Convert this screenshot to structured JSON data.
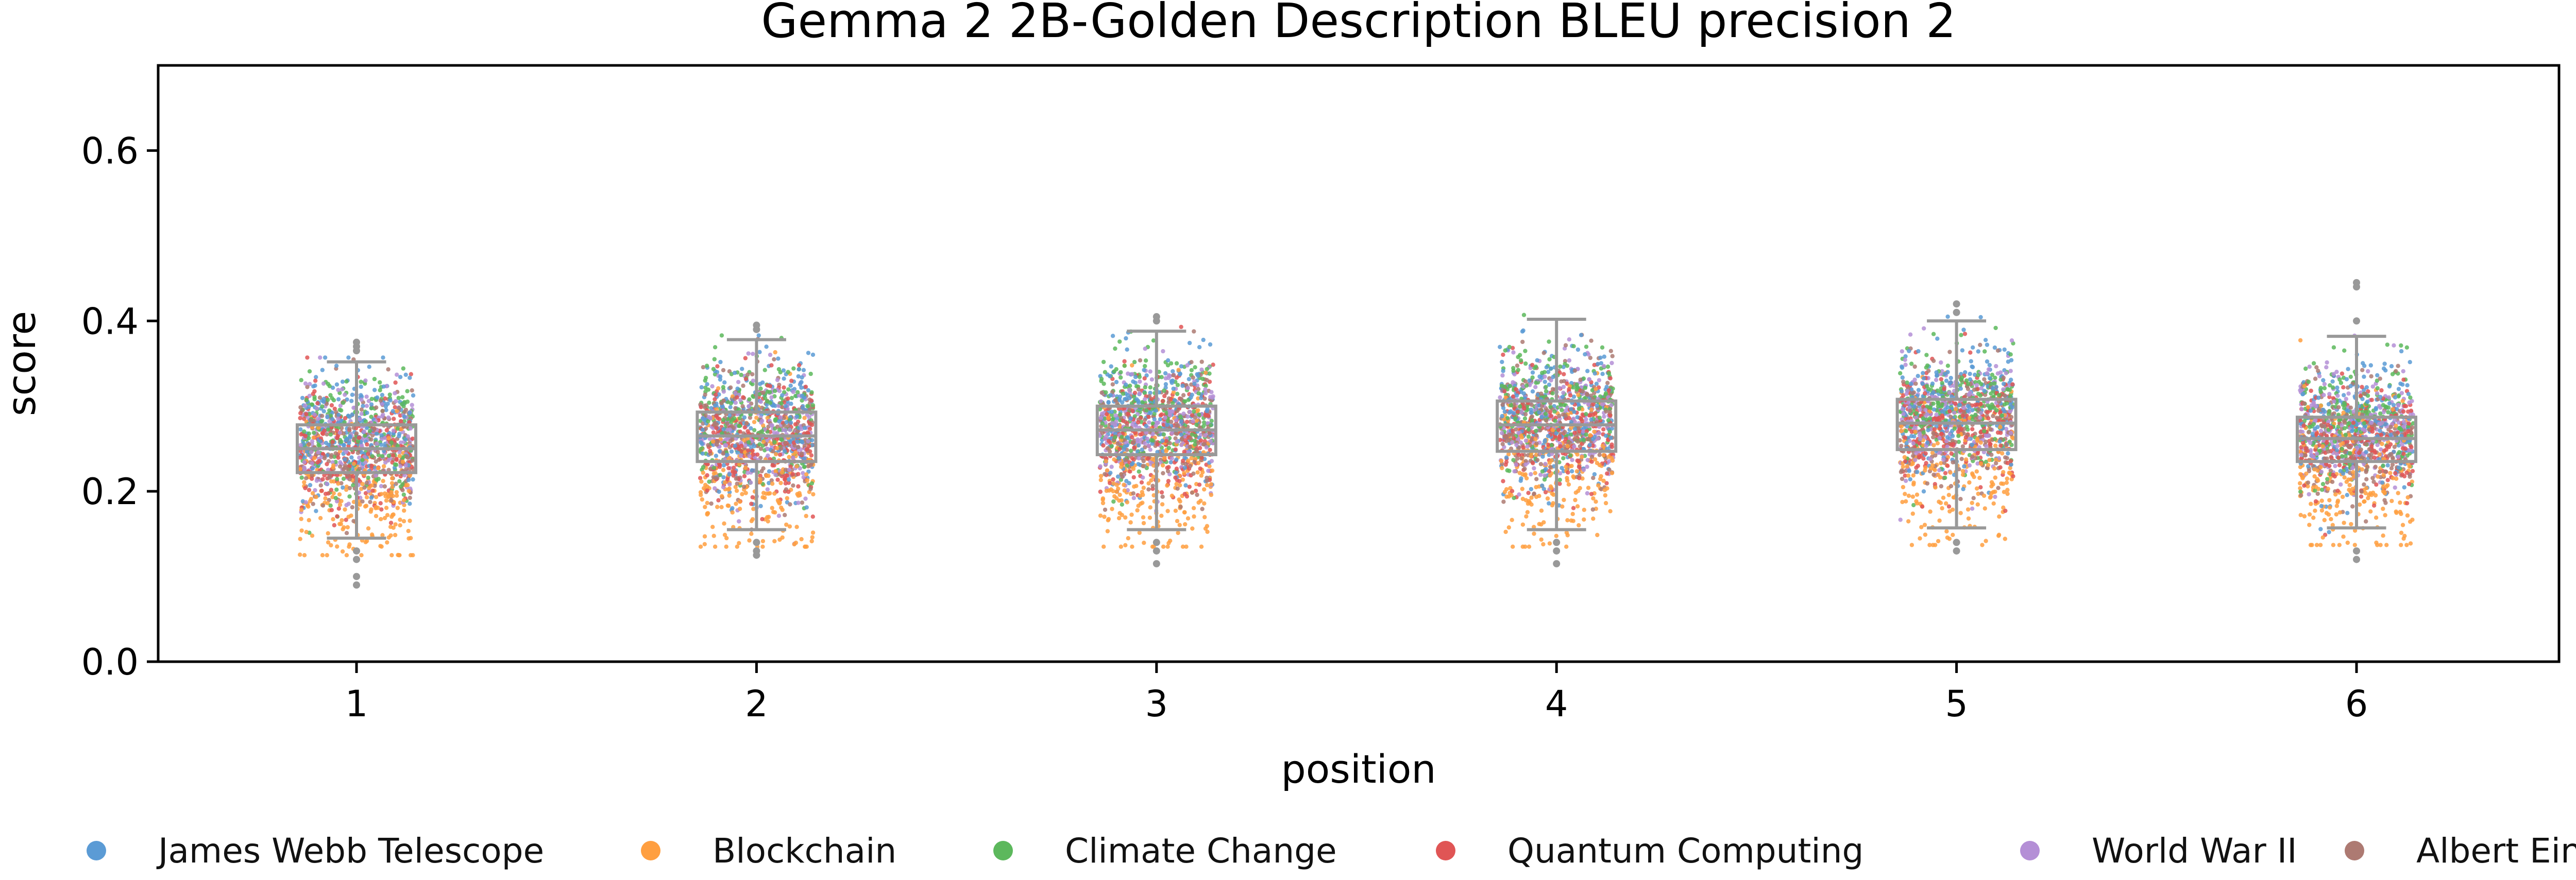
{
  "chart_data": {
    "type": "box+strip",
    "title": "Gemma 2 2B-Golden Description BLEU precision 2",
    "xlabel": "position",
    "ylabel": "score",
    "ylim": [
      0,
      0.7
    ],
    "yticks": [
      "0.0",
      "0.2",
      "0.4",
      "0.6"
    ],
    "categories": [
      "1",
      "2",
      "3",
      "4",
      "5",
      "6"
    ],
    "grid": false,
    "legend_position": "bottom",
    "boxes": [
      {
        "position": "1",
        "whisker_low": 0.145,
        "q1": 0.222,
        "median": 0.25,
        "q3": 0.278,
        "whisker_high": 0.352,
        "outliers": [
          0.09,
          0.1,
          0.12,
          0.13,
          0.365,
          0.37,
          0.375
        ]
      },
      {
        "position": "2",
        "whisker_low": 0.155,
        "q1": 0.235,
        "median": 0.265,
        "q3": 0.293,
        "whisker_high": 0.378,
        "outliers": [
          0.125,
          0.13,
          0.14,
          0.39,
          0.395
        ]
      },
      {
        "position": "3",
        "whisker_low": 0.155,
        "q1": 0.243,
        "median": 0.272,
        "q3": 0.3,
        "whisker_high": 0.388,
        "outliers": [
          0.115,
          0.13,
          0.14,
          0.4,
          0.405
        ]
      },
      {
        "position": "4",
        "whisker_low": 0.155,
        "q1": 0.247,
        "median": 0.278,
        "q3": 0.306,
        "whisker_high": 0.402,
        "outliers": [
          0.115,
          0.13,
          0.14
        ]
      },
      {
        "position": "5",
        "whisker_low": 0.157,
        "q1": 0.249,
        "median": 0.28,
        "q3": 0.308,
        "whisker_high": 0.4,
        "outliers": [
          0.13,
          0.14,
          0.41,
          0.42
        ]
      },
      {
        "position": "6",
        "whisker_low": 0.157,
        "q1": 0.235,
        "median": 0.262,
        "q3": 0.287,
        "whisker_high": 0.382,
        "outliers": [
          0.12,
          0.13,
          0.4,
          0.44,
          0.445
        ]
      }
    ],
    "series": [
      {
        "name": "James Webb Telescope",
        "color": "#5b9bd5",
        "mean_offset": 0.015,
        "spread": 0.04
      },
      {
        "name": "Blockchain",
        "color": "#ff9f40",
        "mean_offset": -0.055,
        "spread": 0.045
      },
      {
        "name": "Climate Change",
        "color": "#5cb85c",
        "mean_offset": 0.02,
        "spread": 0.035
      },
      {
        "name": "Quantum Computing",
        "color": "#e05555",
        "mean_offset": -0.005,
        "spread": 0.035
      },
      {
        "name": "World War II",
        "color": "#b48fd6",
        "mean_offset": 0.005,
        "spread": 0.035
      },
      {
        "name": "Albert Einstein",
        "color": "#ad7a72",
        "mean_offset": 0.0,
        "spread": 0.035
      }
    ]
  }
}
